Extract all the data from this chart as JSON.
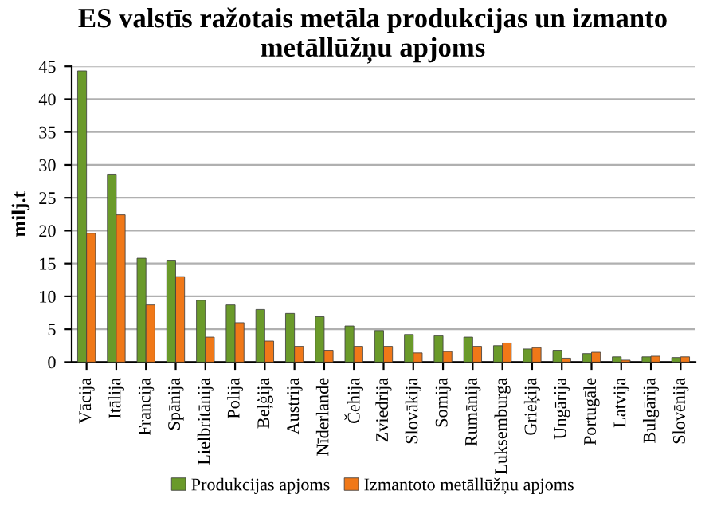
{
  "chart_data": {
    "type": "bar",
    "title": "ES valstīs ražotais metāla produkcijas un izmanto metāllūžņu apjoms",
    "ylabel": "milj.t",
    "categories": [
      "Vācija",
      "Itālija",
      "Francija",
      "Spānija",
      "Lielbritānija",
      "Polija",
      "Beļģija",
      "Austrija",
      "Nīderlande",
      "Čehija",
      "Zviedrija",
      "Slovākija",
      "Somija",
      "Rumānija",
      "Luksemburga",
      "Grieķija",
      "Ungārija",
      "Portugāle",
      "Latvija",
      "Bulgārija",
      "Slovēnija"
    ],
    "series": [
      {
        "name": "Produkcijas apjoms",
        "color": "#6a9a2a",
        "values": [
          44.3,
          28.6,
          15.8,
          15.5,
          9.4,
          8.7,
          8.0,
          7.4,
          6.9,
          5.5,
          4.8,
          4.2,
          4.0,
          3.8,
          2.5,
          2.0,
          1.8,
          1.3,
          0.8,
          0.8,
          0.7
        ]
      },
      {
        "name": "Izmantoto metāllūžņu apjoms",
        "color": "#f07818",
        "values": [
          19.6,
          22.4,
          8.7,
          13.0,
          3.8,
          6.0,
          3.2,
          2.4,
          1.8,
          2.4,
          2.4,
          1.4,
          1.6,
          2.4,
          2.9,
          2.2,
          0.6,
          1.5,
          0.3,
          0.9,
          0.8
        ]
      }
    ],
    "ylim": [
      0,
      45
    ],
    "yticks": [
      0,
      5,
      10,
      15,
      20,
      25,
      30,
      35,
      40,
      45
    ],
    "grid": "y",
    "legend": "bottom"
  }
}
